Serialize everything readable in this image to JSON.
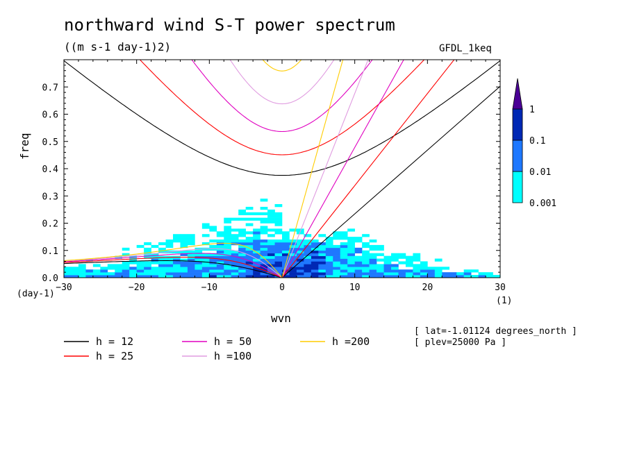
{
  "chart_data": {
    "type": "heatmap",
    "title": "northward wind S-T power spectrum",
    "subtitle": "((m s-1 day-1)2)",
    "model_label": "GFDL_1keq",
    "xlabel": "wvn",
    "ylabel": "freq",
    "x_unit_left": "(day-1)",
    "x_unit_right": "(1)",
    "xlim": [
      -30,
      30
    ],
    "ylim": [
      0,
      0.8
    ],
    "x_ticks": [
      "-30",
      "-20",
      "-10",
      "0",
      "10",
      "20",
      "30"
    ],
    "y_ticks": [
      "0.0",
      "0.1",
      "0.2",
      "0.3",
      "0.4",
      "0.5",
      "0.6",
      "0.7"
    ],
    "colorbar": {
      "levels": [
        "0.001",
        "0.01",
        "0.1",
        "1"
      ],
      "colors": [
        "#00ffff",
        "#1e78ff",
        "#0028b4",
        "#4b0096"
      ]
    },
    "dispersion_curves": [
      {
        "label": "h = 12",
        "h": 12,
        "color": "#000000"
      },
      {
        "label": "h = 25",
        "h": 25,
        "color": "#ff0000"
      },
      {
        "label": "h = 50",
        "h": 50,
        "color": "#e000c0"
      },
      {
        "label": "h =100",
        "h": 100,
        "color": "#e09be0"
      },
      {
        "label": "h =200",
        "h": 200,
        "color": "#ffcc00"
      }
    ],
    "annotations": [
      "[ lat=-1.01124 degrees_north ]",
      "[ plev=25000 Pa ]"
    ]
  }
}
